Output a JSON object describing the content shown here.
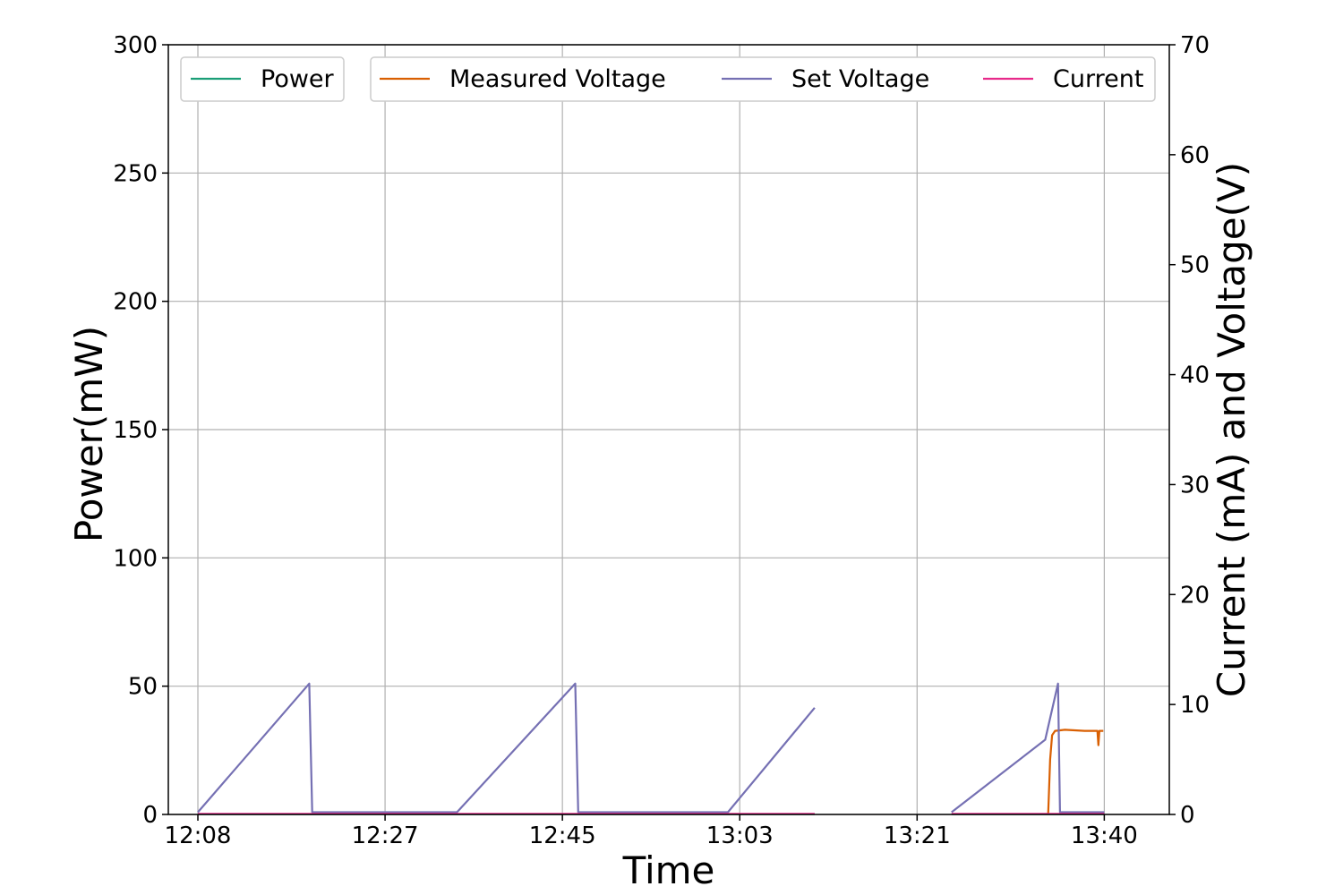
{
  "chart_data": {
    "type": "line",
    "title": "",
    "xlabel": "Time",
    "ylabel_left": "Power(mW)",
    "ylabel_right": "Current (mA) and Voltage(V)",
    "x_unit": "minutes after 12:00",
    "xlim": [
      125.0,
      226.6
    ],
    "ylim_left": [
      0,
      300
    ],
    "ylim_right": [
      0,
      70
    ],
    "grid": true,
    "x_ticks": [
      {
        "value": 128,
        "label": "12:08"
      },
      {
        "value": 147,
        "label": "12:27"
      },
      {
        "value": 165,
        "label": "12:45"
      },
      {
        "value": 183,
        "label": "13:03"
      },
      {
        "value": 201,
        "label": "13:21"
      },
      {
        "value": 220,
        "label": "13:40"
      }
    ],
    "y_ticks_left": [
      "0",
      "50",
      "100",
      "150",
      "200",
      "250",
      "300"
    ],
    "y_ticks_right": [
      "0",
      "10",
      "20",
      "30",
      "40",
      "50",
      "60",
      "70"
    ],
    "series": [
      {
        "name": "Power",
        "axis": "left",
        "color": "#1b9e77",
        "segments": [
          [
            [
              128,
              0.1
            ],
            [
              190.6,
              0.1
            ]
          ],
          [
            [
              204.5,
              0.1
            ],
            [
              220,
              0.1
            ]
          ]
        ]
      },
      {
        "name": "Measured Voltage",
        "axis": "right",
        "color": "#d95f02",
        "segments": [
          [
            [
              214.3,
              0
            ],
            [
              214.5,
              5
            ],
            [
              214.7,
              7.2
            ],
            [
              215,
              7.6
            ],
            [
              216,
              7.7
            ],
            [
              218,
              7.6
            ],
            [
              219.3,
              7.6
            ],
            [
              219.4,
              6.3
            ],
            [
              219.5,
              7.6
            ],
            [
              219.9,
              7.6
            ]
          ]
        ]
      },
      {
        "name": "Set Voltage",
        "axis": "right",
        "color": "#7570b3",
        "segments": [
          [
            [
              128,
              0.2
            ],
            [
              139.3,
              11.9
            ],
            [
              139.6,
              0.2
            ],
            [
              154.3,
              0.2
            ],
            [
              166.3,
              11.9
            ],
            [
              166.6,
              0.2
            ],
            [
              181.8,
              0.2
            ],
            [
              190.6,
              9.7
            ]
          ],
          [
            [
              204.5,
              0.2
            ],
            [
              214.0,
              6.8
            ],
            [
              215.3,
              11.9
            ],
            [
              215.5,
              0.2
            ],
            [
              220,
              0.2
            ]
          ]
        ]
      },
      {
        "name": "Current",
        "axis": "right",
        "color": "#e7298a",
        "segments": [
          [
            [
              128,
              0.05
            ],
            [
              190.6,
              0.05
            ]
          ],
          [
            [
              204.5,
              0.05
            ],
            [
              220,
              0.05
            ]
          ]
        ]
      }
    ],
    "legends": [
      {
        "position": "upper-left",
        "entries": [
          "Power"
        ]
      },
      {
        "position": "upper-right",
        "entries": [
          "Measured Voltage",
          "Set Voltage",
          "Current"
        ]
      }
    ]
  }
}
